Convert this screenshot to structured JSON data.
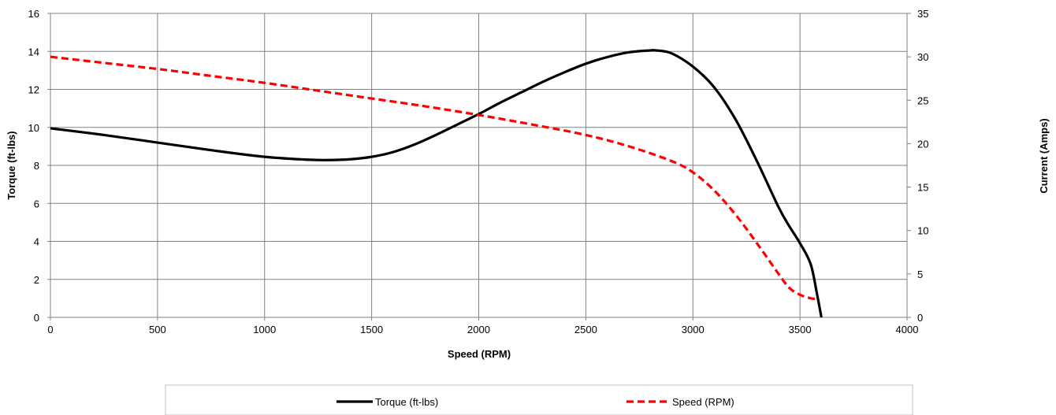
{
  "chart_data": {
    "type": "line",
    "xlabel": "Speed (RPM)",
    "ylabel": "Torque (ft-lbs)",
    "y2label": "Current (Amps)",
    "xlim": [
      0,
      4000
    ],
    "ylim": [
      0,
      16
    ],
    "y2lim": [
      0,
      35
    ],
    "xticks": [
      "0",
      "500",
      "1000",
      "1500",
      "2000",
      "2500",
      "3000",
      "3500",
      "4000"
    ],
    "yticks": [
      "0",
      "2",
      "4",
      "6",
      "8",
      "10",
      "12",
      "14",
      "16"
    ],
    "y2ticks": [
      "0",
      "5",
      "10",
      "15",
      "20",
      "25",
      "30",
      "35"
    ],
    "grid": true,
    "legend_position": "bottom",
    "series": [
      {
        "name": "Torque (ft-lbs)",
        "axis": "left",
        "color": "#000000",
        "style": "solid",
        "x": [
          0,
          250,
          500,
          750,
          1000,
          1200,
          1300,
          1400,
          1500,
          1600,
          1700,
          1800,
          1900,
          2000,
          2100,
          2200,
          2300,
          2400,
          2500,
          2600,
          2700,
          2800,
          2830,
          2900,
          3000,
          3100,
          3200,
          3300,
          3400,
          3450,
          3500,
          3550,
          3580,
          3600
        ],
        "y": [
          9.95,
          9.6,
          9.2,
          8.8,
          8.45,
          8.3,
          8.28,
          8.32,
          8.45,
          8.7,
          9.1,
          9.6,
          10.15,
          10.7,
          11.3,
          11.85,
          12.4,
          12.9,
          13.35,
          13.7,
          13.95,
          14.05,
          14.05,
          13.9,
          13.2,
          12.1,
          10.4,
          8.2,
          5.8,
          4.8,
          3.9,
          2.8,
          1.2,
          0
        ]
      },
      {
        "name": "Speed (RPM)",
        "axis": "right",
        "color": "#ff0000",
        "style": "dashed",
        "x": [
          0,
          250,
          500,
          750,
          1000,
          1250,
          1500,
          1750,
          2000,
          2250,
          2500,
          2700,
          2900,
          3000,
          3100,
          3200,
          3300,
          3400,
          3450,
          3500,
          3550,
          3580
        ],
        "y": [
          30,
          29.3,
          28.6,
          27.8,
          27.0,
          26.1,
          25.2,
          24.3,
          23.3,
          22.2,
          21.0,
          19.7,
          18.0,
          16.7,
          14.6,
          11.8,
          8.5,
          5.0,
          3.4,
          2.6,
          2.2,
          2.1
        ]
      }
    ]
  }
}
